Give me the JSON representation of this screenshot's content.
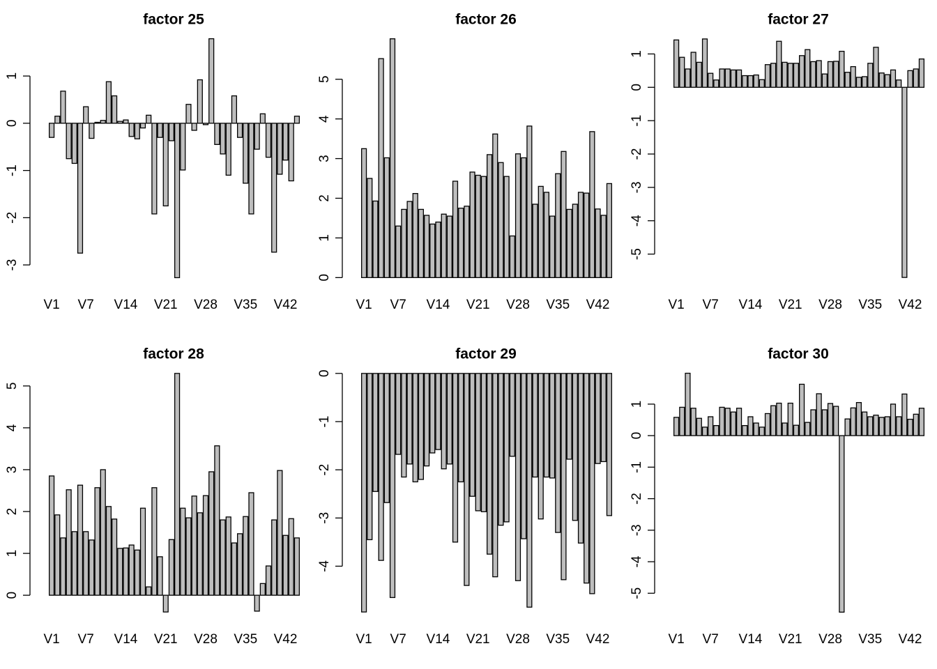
{
  "chart_data": [
    {
      "type": "bar",
      "title": "factor 25",
      "color": "#bebebe",
      "categories": [
        "V1",
        null,
        null,
        null,
        null,
        null,
        "V7",
        null,
        null,
        null,
        null,
        null,
        null,
        "V14",
        null,
        null,
        null,
        null,
        null,
        null,
        "V21",
        null,
        null,
        null,
        null,
        null,
        null,
        "V28",
        null,
        null,
        null,
        null,
        null,
        null,
        "V35",
        null,
        null,
        null,
        null,
        null,
        null,
        "V42",
        null,
        null
      ],
      "values": [
        -0.3,
        0.15,
        0.68,
        -0.75,
        -0.85,
        -2.75,
        0.35,
        -0.32,
        0.02,
        0.06,
        0.88,
        0.58,
        0.04,
        0.07,
        -0.28,
        -0.33,
        -0.1,
        0.17,
        -1.92,
        -0.3,
        -1.75,
        -0.37,
        -3.27,
        -0.99,
        0.4,
        -0.15,
        0.92,
        -0.03,
        1.79,
        -0.45,
        -0.65,
        -1.1,
        0.58,
        -0.3,
        -1.27,
        -1.92,
        -0.55,
        0.2,
        -0.72,
        -2.73,
        -1.08,
        -0.78,
        -1.22,
        0.15
      ],
      "ylim": [
        -3.47,
        1.99
      ],
      "yticks": [
        -3,
        -2,
        -1,
        0,
        1
      ]
    },
    {
      "type": "bar",
      "title": "factor 26",
      "color": "#bebebe",
      "categories": [
        "V1",
        null,
        null,
        null,
        null,
        null,
        "V7",
        null,
        null,
        null,
        null,
        null,
        null,
        "V14",
        null,
        null,
        null,
        null,
        null,
        null,
        "V21",
        null,
        null,
        null,
        null,
        null,
        null,
        "V28",
        null,
        null,
        null,
        null,
        null,
        null,
        "V35",
        null,
        null,
        null,
        null,
        null,
        null,
        "V42",
        null,
        null
      ],
      "values": [
        3.25,
        2.5,
        1.93,
        5.52,
        3.02,
        6.02,
        1.3,
        1.72,
        1.92,
        2.12,
        1.72,
        1.57,
        1.35,
        1.4,
        1.6,
        1.55,
        2.43,
        1.75,
        1.8,
        2.66,
        2.58,
        2.55,
        3.1,
        3.62,
        2.9,
        2.55,
        1.05,
        3.12,
        3.02,
        3.82,
        1.85,
        2.3,
        2.15,
        1.55,
        2.62,
        3.18,
        1.72,
        1.85,
        2.15,
        2.13,
        3.68,
        1.73,
        1.57,
        2.37
      ],
      "ylim": [
        -0.24,
        6.26
      ],
      "yticks": [
        0,
        1,
        2,
        3,
        4,
        5
      ]
    },
    {
      "type": "bar",
      "title": "factor 27",
      "color": "#bebebe",
      "categories": [
        "V1",
        null,
        null,
        null,
        null,
        null,
        "V7",
        null,
        null,
        null,
        null,
        null,
        null,
        "V14",
        null,
        null,
        null,
        null,
        null,
        null,
        "V21",
        null,
        null,
        null,
        null,
        null,
        null,
        "V28",
        null,
        null,
        null,
        null,
        null,
        null,
        "V35",
        null,
        null,
        null,
        null,
        null,
        null,
        "V42",
        null,
        null
      ],
      "values": [
        1.42,
        0.9,
        0.55,
        1.05,
        0.75,
        1.45,
        0.42,
        0.22,
        0.55,
        0.55,
        0.52,
        0.52,
        0.35,
        0.35,
        0.37,
        0.23,
        0.68,
        0.72,
        1.38,
        0.75,
        0.72,
        0.72,
        0.95,
        1.13,
        0.77,
        0.8,
        0.4,
        0.77,
        0.78,
        1.08,
        0.45,
        0.62,
        0.3,
        0.32,
        0.72,
        1.2,
        0.43,
        0.38,
        0.52,
        0.22,
        -5.7,
        0.5,
        0.55,
        0.85
      ],
      "ylim": [
        -5.99,
        1.74
      ],
      "yticks": [
        -5,
        -4,
        -3,
        -2,
        -1,
        0,
        1
      ]
    },
    {
      "type": "bar",
      "title": "factor 28",
      "color": "#bebebe",
      "categories": [
        "V1",
        null,
        null,
        null,
        null,
        null,
        "V7",
        null,
        null,
        null,
        null,
        null,
        null,
        "V14",
        null,
        null,
        null,
        null,
        null,
        null,
        "V21",
        null,
        null,
        null,
        null,
        null,
        null,
        "V28",
        null,
        null,
        null,
        null,
        null,
        null,
        "V35",
        null,
        null,
        null,
        null,
        null,
        null,
        "V42",
        null,
        null
      ],
      "values": [
        2.85,
        1.92,
        1.37,
        2.52,
        1.52,
        2.63,
        1.52,
        1.32,
        2.57,
        3.0,
        2.12,
        1.82,
        1.12,
        1.13,
        1.2,
        1.08,
        2.08,
        0.2,
        2.57,
        0.92,
        -0.4,
        1.33,
        5.3,
        2.08,
        1.85,
        2.37,
        1.97,
        2.38,
        2.95,
        3.57,
        1.8,
        1.87,
        1.25,
        1.47,
        1.88,
        2.45,
        -0.38,
        0.28,
        0.7,
        1.8,
        2.98,
        1.43,
        1.83,
        1.37
      ],
      "ylim": [
        -0.63,
        5.53
      ],
      "yticks": [
        0,
        1,
        2,
        3,
        4,
        5
      ]
    },
    {
      "type": "bar",
      "title": "factor 29",
      "color": "#bebebe",
      "categories": [
        "V1",
        null,
        null,
        null,
        null,
        null,
        "V7",
        null,
        null,
        null,
        null,
        null,
        null,
        "V14",
        null,
        null,
        null,
        null,
        null,
        null,
        "V21",
        null,
        null,
        null,
        null,
        null,
        null,
        "V28",
        null,
        null,
        null,
        null,
        null,
        null,
        "V35",
        null,
        null,
        null,
        null,
        null,
        null,
        "V42",
        null,
        null
      ],
      "values": [
        -4.95,
        -3.45,
        -2.45,
        -3.88,
        -2.68,
        -4.65,
        -1.68,
        -2.15,
        -1.88,
        -2.25,
        -2.2,
        -1.92,
        -1.65,
        -1.58,
        -1.98,
        -1.88,
        -3.5,
        -2.25,
        -4.4,
        -2.55,
        -2.85,
        -2.87,
        -3.75,
        -4.22,
        -3.15,
        -3.08,
        -1.72,
        -4.3,
        -3.43,
        -4.85,
        -2.15,
        -3.02,
        -2.15,
        -2.17,
        -3.3,
        -4.28,
        -1.78,
        -3.05,
        -3.52,
        -4.35,
        -4.57,
        -1.87,
        -1.83,
        -2.95
      ],
      "ylim": [
        -5.15,
        0.2
      ],
      "yticks": [
        -4,
        -3,
        -2,
        -1,
        0
      ]
    },
    {
      "type": "bar",
      "title": "factor 30",
      "color": "#bebebe",
      "categories": [
        "V1",
        null,
        null,
        null,
        null,
        null,
        "V7",
        null,
        null,
        null,
        null,
        null,
        null,
        "V14",
        null,
        null,
        null,
        null,
        null,
        null,
        "V21",
        null,
        null,
        null,
        null,
        null,
        null,
        "V28",
        null,
        null,
        null,
        null,
        null,
        null,
        "V35",
        null,
        null,
        null,
        null,
        null,
        null,
        "V42",
        null,
        null
      ],
      "values": [
        0.58,
        0.9,
        1.98,
        0.87,
        0.55,
        0.27,
        0.6,
        0.32,
        0.9,
        0.87,
        0.75,
        0.87,
        0.32,
        0.6,
        0.4,
        0.27,
        0.7,
        0.95,
        1.03,
        0.4,
        1.03,
        0.33,
        1.63,
        0.42,
        0.82,
        1.33,
        0.82,
        1.02,
        0.93,
        -5.6,
        0.53,
        0.88,
        1.05,
        0.75,
        0.6,
        0.65,
        0.58,
        0.6,
        1.0,
        0.6,
        1.32,
        0.52,
        0.68,
        0.87
      ],
      "ylim": [
        -5.9,
        2.28
      ],
      "yticks": [
        -5,
        -4,
        -3,
        -2,
        -1,
        0,
        1
      ]
    }
  ]
}
